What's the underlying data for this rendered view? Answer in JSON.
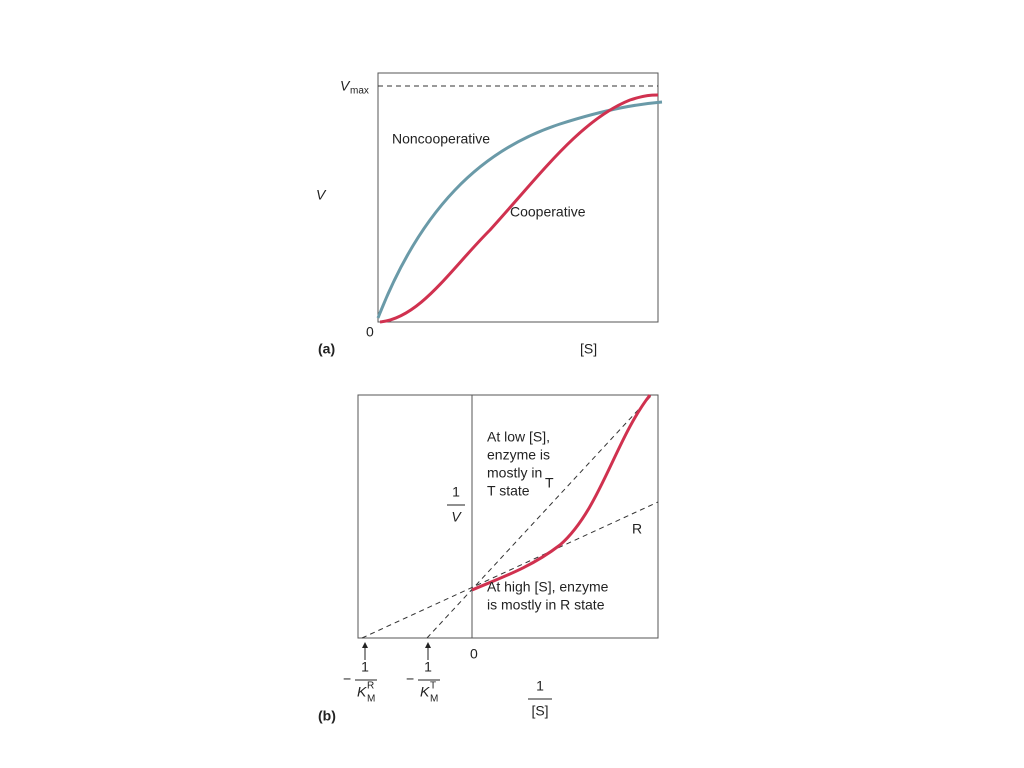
{
  "panel_a": {
    "label": "(a)",
    "vmax": {
      "symbol": "V",
      "sub": "max"
    },
    "y_label": "V",
    "origin": "0",
    "x_label": "[S]",
    "curves": {
      "noncooperative": "Noncooperative",
      "cooperative": "Cooperative"
    }
  },
  "panel_b": {
    "label": "(b)",
    "origin": "0",
    "y_label": {
      "numerator": "1",
      "denominator": "V"
    },
    "x_label": {
      "numerator": "1",
      "denominator": "[S]"
    },
    "low_note": [
      "At low [S],",
      "enzyme is",
      "mostly in",
      "T state"
    ],
    "high_note": [
      "At high [S], enzyme",
      "is mostly in R state"
    ],
    "line_t": "T",
    "line_r": "R",
    "intercept_r": {
      "minus": "−",
      "numerator": "1",
      "symbol": "K",
      "sub": "M",
      "sup": "R"
    },
    "intercept_t": {
      "minus": "−",
      "numerator": "1",
      "symbol": "K",
      "sub": "M",
      "sup": "T"
    }
  }
}
